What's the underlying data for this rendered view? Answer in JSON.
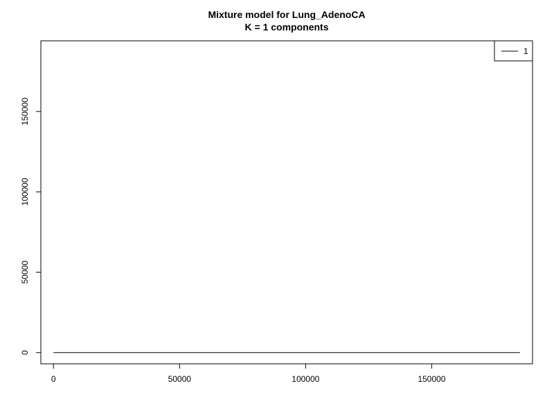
{
  "chart_data": {
    "type": "line",
    "title": "Mixture model for Lung_AdenoCA",
    "subtitle": "K = 1 components",
    "xlabel": "",
    "ylabel": "",
    "xlim": [
      -5000,
      190000
    ],
    "ylim": [
      -7000,
      194000
    ],
    "x_ticks": [
      0,
      50000,
      100000,
      150000
    ],
    "x_tick_labels": [
      "0",
      "50000",
      "100000",
      "150000"
    ],
    "y_ticks": [
      0,
      50000,
      100000,
      150000
    ],
    "y_tick_labels": [
      "0",
      "50000",
      "100000",
      "150000"
    ],
    "grid": false,
    "legend_position": "top-right",
    "series": [
      {
        "name": "1",
        "color": "#000000",
        "x": [
          0,
          185000
        ],
        "y": [
          0,
          0
        ]
      }
    ]
  }
}
